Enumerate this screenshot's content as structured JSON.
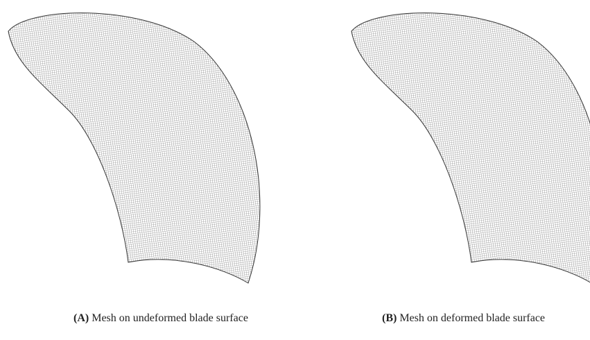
{
  "panels": [
    {
      "label": "(A)",
      "caption": "Mesh on undeformed blade surface"
    },
    {
      "label": "(B)",
      "caption": "Mesh on deformed blade surface"
    }
  ]
}
